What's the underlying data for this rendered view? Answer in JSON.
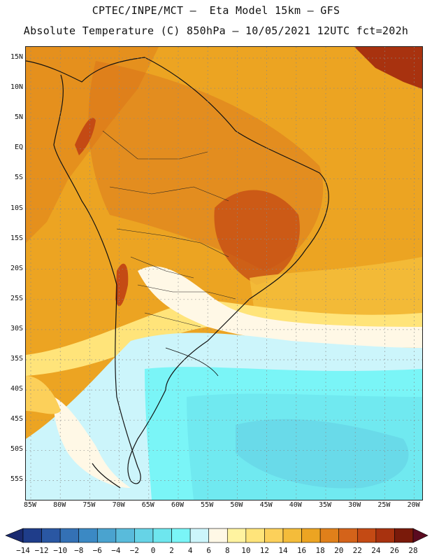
{
  "header": {
    "line1": "CPTEC/INPE/MCT –  Eta Model 15km – GFS",
    "line2": "Absolute Temperature (C) 850hPa – 10/05/2021 12UTC fct=202h"
  },
  "map": {
    "lat_labels": [
      "15N",
      "10N",
      "5N",
      "EQ",
      "5S",
      "10S",
      "15S",
      "20S",
      "25S",
      "30S",
      "35S",
      "40S",
      "45S",
      "50S",
      "55S"
    ],
    "lon_labels": [
      "85W",
      "80W",
      "75W",
      "70W",
      "65W",
      "60W",
      "55W",
      "50W",
      "45W",
      "40W",
      "35W",
      "30W",
      "25W",
      "20W"
    ],
    "zones": [
      {
        "name": "base",
        "value": 16
      },
      {
        "name": "northwest-ocean",
        "value": 18
      },
      {
        "name": "northeast-caribbean",
        "value": 24
      },
      {
        "name": "amazon-brazil",
        "value": 20
      },
      {
        "name": "central-brazil",
        "value": 22
      },
      {
        "name": "andes-colombia",
        "value": 22
      },
      {
        "name": "south-atlantic-warm",
        "value": 14
      },
      {
        "name": "subtropical-band",
        "value": 10
      },
      {
        "name": "transition",
        "value": 6
      },
      {
        "name": "south-cold",
        "value": 4
      },
      {
        "name": "deep-south",
        "value": 2
      },
      {
        "name": "southern-ocean",
        "value": 0
      },
      {
        "name": "polar-front",
        "value": -2
      },
      {
        "name": "patagonia-coast",
        "value": 6
      },
      {
        "name": "chile-coast",
        "value": 12
      }
    ]
  },
  "legend": {
    "colors": [
      "#1f3d8a",
      "#2a57a3",
      "#3471b5",
      "#3b89c4",
      "#4aa3cf",
      "#59bbdb",
      "#66d3e6",
      "#6ee6ee",
      "#7af5f7",
      "#ccf5fb",
      "#fff8e6",
      "#fff3a0",
      "#ffe47a",
      "#fcd05a",
      "#f4bc3a",
      "#eca422",
      "#e0801a",
      "#d4631a",
      "#c44a14",
      "#a8320f",
      "#7a1a0a"
    ],
    "tick_labels": [
      "-14",
      "-12",
      "-10",
      "-8",
      "-6",
      "-4",
      "-2",
      "0",
      "2",
      "4",
      "6",
      "8",
      "10",
      "12",
      "14",
      "16",
      "18",
      "20",
      "22",
      "24",
      "26",
      "28"
    ],
    "arrow_left_color": "#1a2a70",
    "arrow_right_color": "#5a0a20"
  }
}
